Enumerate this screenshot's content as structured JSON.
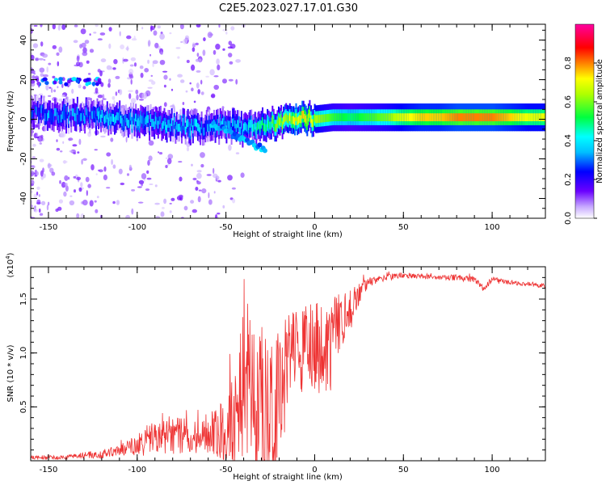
{
  "title": "C2E5.2023.027.17.01.G30",
  "chart_data": [
    {
      "type": "heatmap",
      "xlabel": "Height of straight line (km)",
      "ylabel": "Frequency (Hz)",
      "xlim": [
        -160,
        130
      ],
      "ylim": [
        -50,
        48
      ],
      "xticks": [
        -150,
        -100,
        -50,
        0,
        50,
        100
      ],
      "yticks": [
        -40,
        -20,
        0,
        20,
        40
      ],
      "colorbar": {
        "label": "Normalized spectral amplitude",
        "range": [
          0,
          1
        ],
        "ticks": [
          "0.0",
          "0.2",
          "0.4",
          "0.6",
          "0.8"
        ],
        "colors": [
          "#ffffff",
          "#6a00ff",
          "#0000ff",
          "#00ffff",
          "#00ff00",
          "#ffff00",
          "#ff8000",
          "#ff0000",
          "#ff00a0"
        ]
      },
      "ridge": {
        "x": [
          -160,
          -150,
          -140,
          -130,
          -120,
          -110,
          -100,
          -90,
          -80,
          -70,
          -60,
          -50,
          -40,
          -30,
          -20,
          -10,
          0,
          10,
          20,
          30,
          40,
          50,
          60,
          70,
          80,
          90,
          100,
          110,
          120,
          130
        ],
        "y": [
          3,
          3,
          2,
          2,
          1,
          0,
          -1,
          -2,
          -3,
          -4,
          -4,
          -3,
          -5,
          -3,
          -2,
          1,
          0,
          1,
          1,
          1,
          1,
          1,
          1,
          1,
          1,
          1,
          1,
          1,
          1,
          1
        ],
        "amplitude": [
          0.25,
          0.3,
          0.3,
          0.3,
          0.35,
          0.35,
          0.35,
          0.35,
          0.35,
          0.35,
          0.3,
          0.35,
          0.35,
          0.45,
          0.6,
          0.7,
          0.65,
          0.55,
          0.5,
          0.55,
          0.6,
          0.7,
          0.75,
          0.75,
          0.8,
          0.8,
          0.8,
          0.75,
          0.7,
          0.7
        ]
      }
    },
    {
      "type": "line",
      "xlabel": "Height of straight line (km)",
      "ylabel": "SNR (10 * v/v)",
      "multiplier": "(x10^4)",
      "xlim": [
        -160,
        130
      ],
      "ylim": [
        0,
        1.8
      ],
      "xticks": [
        -150,
        -100,
        -50,
        0,
        50,
        100
      ],
      "yticks": [
        0.5,
        1.0,
        1.5
      ],
      "series": [
        {
          "color": "#ee3333",
          "x": [
            -160,
            -150,
            -140,
            -130,
            -120,
            -110,
            -100,
            -90,
            -80,
            -70,
            -60,
            -50,
            -45,
            -40,
            -35,
            -30,
            -25,
            -20,
            -15,
            -10,
            -5,
            0,
            5,
            10,
            15,
            20,
            25,
            30,
            35,
            40,
            50,
            60,
            70,
            80,
            90,
            95,
            100,
            110,
            120,
            130
          ],
          "y": [
            0.03,
            0.03,
            0.03,
            0.05,
            0.06,
            0.09,
            0.14,
            0.22,
            0.24,
            0.22,
            0.26,
            0.3,
            0.45,
            0.6,
            0.7,
            0.5,
            0.15,
            0.65,
            0.85,
            0.95,
            1.05,
            1.05,
            1.0,
            1.1,
            1.25,
            1.4,
            1.55,
            1.65,
            1.68,
            1.7,
            1.72,
            1.71,
            1.7,
            1.7,
            1.68,
            1.6,
            1.68,
            1.65,
            1.64,
            1.62
          ],
          "noise": [
            0.02,
            0.02,
            0.02,
            0.03,
            0.04,
            0.06,
            0.1,
            0.16,
            0.18,
            0.16,
            0.2,
            0.3,
            0.5,
            0.6,
            0.7,
            0.9,
            0.9,
            0.6,
            0.5,
            0.45,
            0.4,
            0.45,
            0.4,
            0.45,
            0.3,
            0.2,
            0.1,
            0.05,
            0.03,
            0.03,
            0.03,
            0.02,
            0.02,
            0.03,
            0.03,
            0.03,
            0.03,
            0.02,
            0.02,
            0.02
          ]
        }
      ]
    }
  ]
}
